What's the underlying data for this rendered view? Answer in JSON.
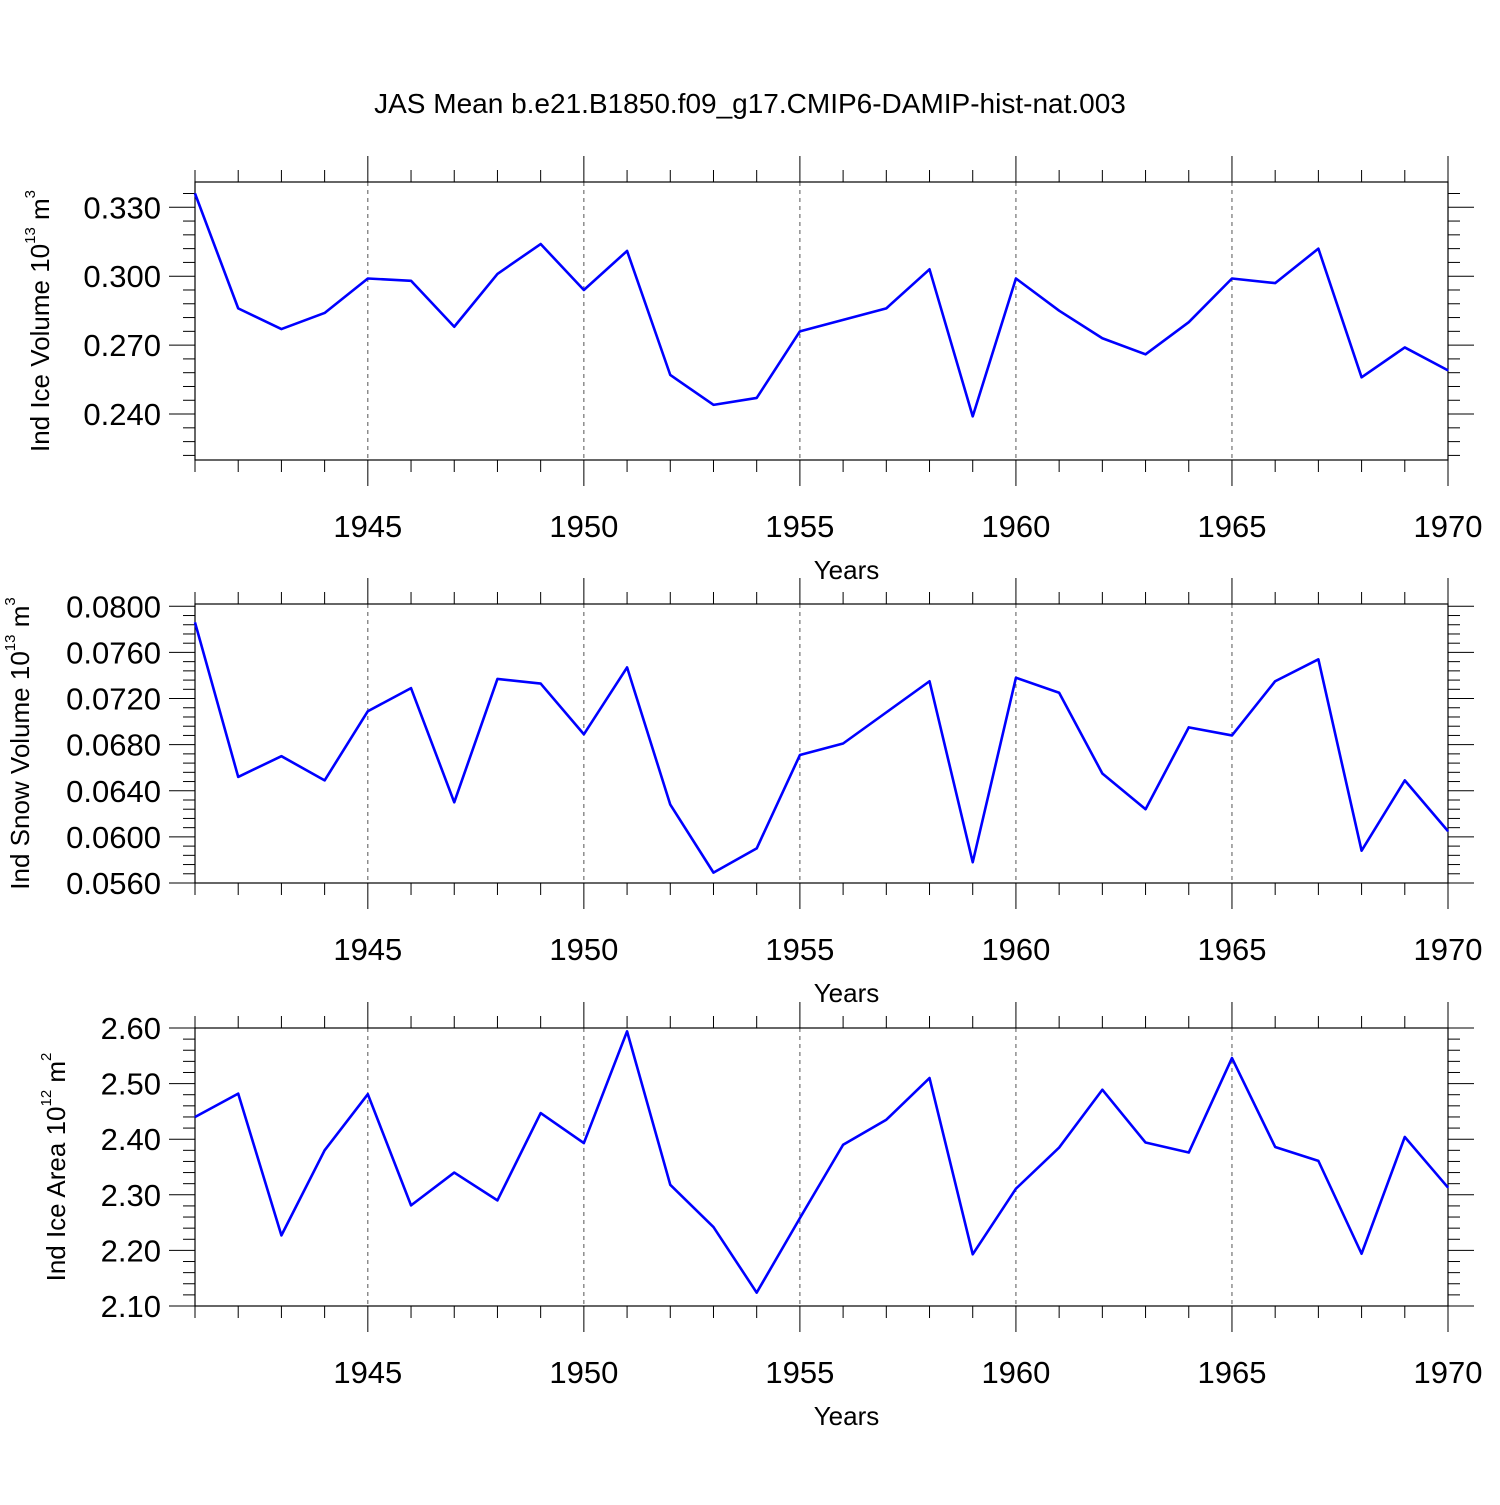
{
  "title": "JAS Mean b.e21.B1850.f09_g17.CMIP6-DAMIP-hist-nat.003",
  "colors": {
    "line": "#0000ff",
    "axis": "#000000",
    "grid": "#555555"
  },
  "chart_data": [
    {
      "type": "line",
      "xlabel": "Years",
      "ylabel": "Ind Ice Volume 10",
      "ylabel_exp": "13",
      "ylabel_unit": " m",
      "ylabel_unit_exp": "3",
      "xlim": [
        1941,
        1970
      ],
      "ylim": [
        0.22,
        0.341
      ],
      "xticks": [
        "1945",
        "1950",
        "1955",
        "1960",
        "1965",
        "1970"
      ],
      "yticks": [
        "0.240",
        "0.270",
        "0.300",
        "0.330"
      ],
      "grid": "vertical dashed at major x ticks",
      "x": [
        1941,
        1942,
        1943,
        1944,
        1945,
        1946,
        1947,
        1948,
        1949,
        1950,
        1951,
        1952,
        1953,
        1954,
        1955,
        1956,
        1957,
        1958,
        1959,
        1960,
        1961,
        1962,
        1963,
        1964,
        1965,
        1966,
        1967,
        1968,
        1969,
        1970
      ],
      "series": [
        {
          "values": [
            0.336,
            0.286,
            0.277,
            0.284,
            0.299,
            0.298,
            0.278,
            0.301,
            0.314,
            0.294,
            0.311,
            0.257,
            0.244,
            0.247,
            0.276,
            0.281,
            0.286,
            0.303,
            0.239,
            0.299,
            0.285,
            0.273,
            0.266,
            0.28,
            0.299,
            0.297,
            0.312,
            0.256,
            0.269,
            0.259
          ]
        }
      ]
    },
    {
      "type": "line",
      "xlabel": "Years",
      "ylabel": "Ind Snow Volume 10",
      "ylabel_exp": "13",
      "ylabel_unit": " m",
      "ylabel_unit_exp": "3",
      "xlim": [
        1941,
        1970
      ],
      "ylim": [
        0.056,
        0.0802
      ],
      "xticks": [
        "1945",
        "1950",
        "1955",
        "1960",
        "1965",
        "1970"
      ],
      "yticks": [
        "0.0560",
        "0.0600",
        "0.0640",
        "0.0680",
        "0.0720",
        "0.0760",
        "0.0800"
      ],
      "grid": "vertical dashed at major x ticks",
      "x": [
        1941,
        1942,
        1943,
        1944,
        1945,
        1946,
        1947,
        1948,
        1949,
        1950,
        1951,
        1952,
        1953,
        1954,
        1955,
        1956,
        1957,
        1958,
        1959,
        1960,
        1961,
        1962,
        1963,
        1964,
        1965,
        1966,
        1967,
        1968,
        1969,
        1970
      ],
      "series": [
        {
          "values": [
            0.0786,
            0.0652,
            0.067,
            0.0649,
            0.0709,
            0.0729,
            0.063,
            0.0737,
            0.0733,
            0.0689,
            0.0747,
            0.0628,
            0.0569,
            0.059,
            0.0671,
            0.0681,
            0.0708,
            0.0735,
            0.0578,
            0.0738,
            0.0725,
            0.0655,
            0.0624,
            0.0695,
            0.0688,
            0.0735,
            0.0754,
            0.0588,
            0.0649,
            0.0605
          ]
        }
      ]
    },
    {
      "type": "line",
      "xlabel": "Years",
      "ylabel": "Ind Ice Area 10",
      "ylabel_exp": "12",
      "ylabel_unit": " m",
      "ylabel_unit_exp": "2",
      "xlim": [
        1941,
        1970
      ],
      "ylim": [
        2.1,
        2.6
      ],
      "xticks": [
        "1945",
        "1950",
        "1955",
        "1960",
        "1965",
        "1970"
      ],
      "yticks": [
        "2.10",
        "2.20",
        "2.30",
        "2.40",
        "2.50",
        "2.60"
      ],
      "grid": "vertical dashed at major x ticks",
      "x": [
        1941,
        1942,
        1943,
        1944,
        1945,
        1946,
        1947,
        1948,
        1949,
        1950,
        1951,
        1952,
        1953,
        1954,
        1955,
        1956,
        1957,
        1958,
        1959,
        1960,
        1961,
        1962,
        1963,
        1964,
        1965,
        1966,
        1967,
        1968,
        1969,
        1970
      ],
      "series": [
        {
          "values": [
            2.44,
            2.482,
            2.227,
            2.38,
            2.481,
            2.281,
            2.34,
            2.29,
            2.447,
            2.393,
            2.594,
            2.318,
            2.242,
            2.124,
            2.258,
            2.39,
            2.435,
            2.51,
            2.193,
            2.311,
            2.385,
            2.489,
            2.394,
            2.376,
            2.546,
            2.386,
            2.361,
            2.194,
            2.404,
            2.313
          ]
        }
      ]
    }
  ]
}
